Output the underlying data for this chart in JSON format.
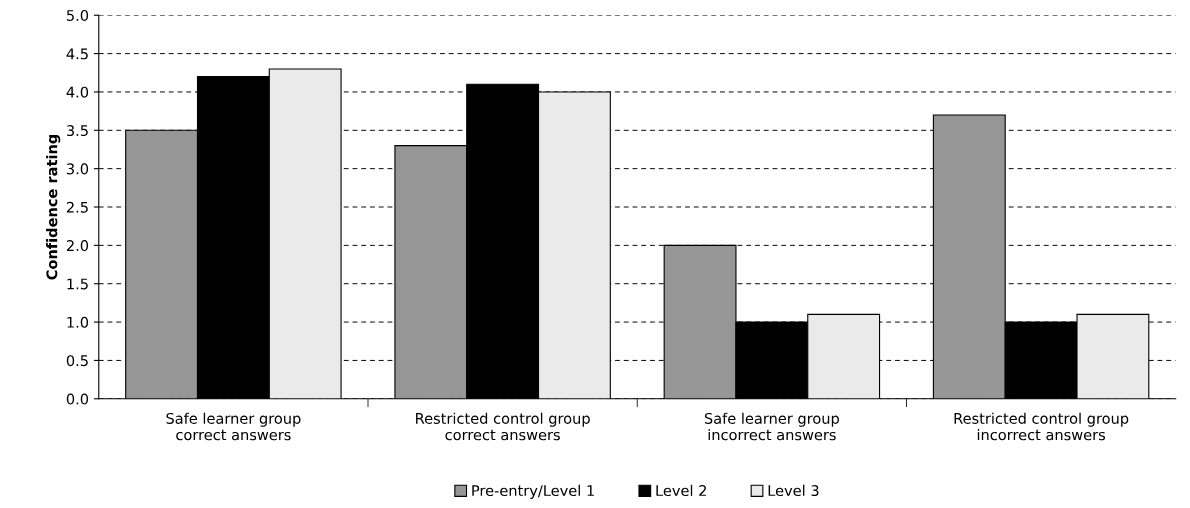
{
  "chart_data": {
    "type": "bar",
    "ylabel": "Confidence rating",
    "categories": [
      "Safe learner group\ncorrect answers",
      "Restricted control group\ncorrect answers",
      "Safe learner group\nincorrect answers",
      "Restricted control group\nincorrect answers"
    ],
    "series": [
      {
        "name": "Pre-entry/Level 1",
        "color": "#969696",
        "values": [
          3.5,
          3.3,
          2.0,
          3.7
        ]
      },
      {
        "name": "Level 2",
        "color": "#000000",
        "values": [
          4.2,
          4.1,
          1.0,
          1.0
        ]
      },
      {
        "name": "Level 3",
        "color": "#eaeaea",
        "values": [
          4.3,
          4.0,
          1.1,
          1.1
        ]
      }
    ],
    "ylim": [
      0,
      5
    ],
    "yticks": [
      {
        "value": 0,
        "label": "0.0"
      },
      {
        "value": 0.5,
        "label": "0.5"
      },
      {
        "value": 1,
        "label": "1.0"
      },
      {
        "value": 1.5,
        "label": "1.5"
      },
      {
        "value": 2,
        "label": "2.0"
      },
      {
        "value": 2.5,
        "label": "2.5"
      },
      {
        "value": 3,
        "label": "3.0"
      },
      {
        "value": 3.5,
        "label": "3.5"
      },
      {
        "value": 4,
        "label": "4.0"
      },
      {
        "value": 4.5,
        "label": "4.5"
      },
      {
        "value": 5,
        "label": "5.0"
      }
    ],
    "grid": "y",
    "legend": "bottom"
  }
}
